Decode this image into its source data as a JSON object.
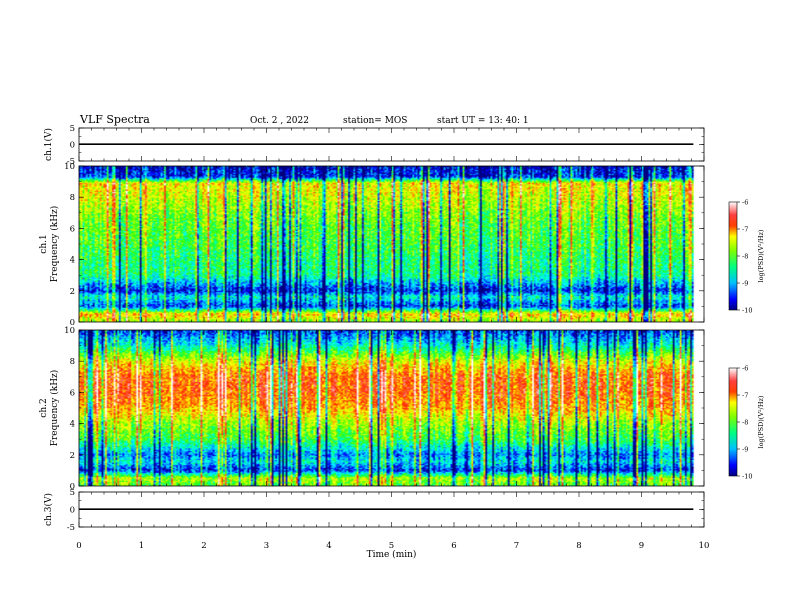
{
  "header": {
    "title": "VLF Spectra",
    "date": "Oct. 2 , 2022",
    "station": "station= MOS",
    "start": "start UT = 13: 40: 1"
  },
  "colors": {
    "colormap": [
      "#000080",
      "#0000ff",
      "#00a0ff",
      "#00ffff",
      "#00ff80",
      "#40ff00",
      "#c0ff00",
      "#ffff00",
      "#ff8000",
      "#ff2000",
      "#ff8080",
      "#ffffff"
    ],
    "trace": "#000000"
  },
  "chart_data": [
    {
      "type": "line",
      "panel": "ch1-waveform",
      "ylabel": "ch.1(V)",
      "ylim": [
        -5,
        5
      ],
      "yticks": [
        "5",
        "0",
        "-5"
      ],
      "xlim": [
        0,
        10
      ],
      "series": [
        {
          "x": [
            0,
            9.83
          ],
          "y": [
            0.1,
            0.1
          ]
        }
      ]
    },
    {
      "type": "heatmap",
      "panel": "ch1-spectrogram",
      "ylabel": "ch.1\nFrequency (kHz)",
      "ylim": [
        0,
        10
      ],
      "yticks": [
        "0",
        "2",
        "4",
        "6",
        "8",
        "10"
      ],
      "xlim": [
        0,
        10
      ],
      "x_data_max": 9.83,
      "colorbar": {
        "label": "log(PSD)(V²/Hz)",
        "range": [
          -10,
          -6
        ],
        "ticks": [
          "-6",
          "-7",
          "-8",
          "-9",
          "-10"
        ]
      },
      "band_profile": [
        {
          "f": 0.0,
          "level": -8.0
        },
        {
          "f": 0.5,
          "level": -7.3
        },
        {
          "f": 1.0,
          "level": -9.6
        },
        {
          "f": 1.6,
          "level": -8.8
        },
        {
          "f": 2.0,
          "level": -9.7
        },
        {
          "f": 3.0,
          "level": -8.6
        },
        {
          "f": 4.0,
          "level": -8.5
        },
        {
          "f": 5.0,
          "level": -8.3
        },
        {
          "f": 6.0,
          "level": -8.2
        },
        {
          "f": 7.0,
          "level": -8.0
        },
        {
          "f": 8.0,
          "level": -7.7
        },
        {
          "f": 8.9,
          "level": -7.5
        },
        {
          "f": 9.3,
          "level": -9.6
        },
        {
          "f": 10.0,
          "level": -9.8
        }
      ]
    },
    {
      "type": "heatmap",
      "panel": "ch2-spectrogram",
      "ylabel": "ch.2\nFrequency (kHz)",
      "ylim": [
        0,
        10
      ],
      "yticks": [
        "0",
        "2",
        "4",
        "6",
        "8",
        "10"
      ],
      "xlim": [
        0,
        10
      ],
      "x_data_max": 9.83,
      "colorbar": {
        "label": "log(PSD)(V²/Hz)",
        "range": [
          -10,
          -6
        ],
        "ticks": [
          "-6",
          "-7",
          "-8",
          "-9",
          "-10"
        ]
      },
      "band_profile": [
        {
          "f": 0.0,
          "level": -8.2
        },
        {
          "f": 0.5,
          "level": -7.8
        },
        {
          "f": 1.0,
          "level": -9.6
        },
        {
          "f": 1.6,
          "level": -8.9
        },
        {
          "f": 2.0,
          "level": -9.3
        },
        {
          "f": 3.0,
          "level": -8.3
        },
        {
          "f": 4.0,
          "level": -7.9
        },
        {
          "f": 5.0,
          "level": -7.2
        },
        {
          "f": 6.0,
          "level": -6.9
        },
        {
          "f": 7.0,
          "level": -6.9
        },
        {
          "f": 8.0,
          "level": -7.6
        },
        {
          "f": 9.0,
          "level": -8.8
        },
        {
          "f": 10.0,
          "level": -9.6
        }
      ]
    },
    {
      "type": "line",
      "panel": "ch3-waveform",
      "ylabel": "ch.3(V)",
      "ylim": [
        -5,
        5
      ],
      "yticks": [
        "5",
        "0",
        "-5"
      ],
      "xlim": [
        0,
        10
      ],
      "xlabel": "Time (min)",
      "xticks": [
        "0",
        "1",
        "2",
        "3",
        "4",
        "5",
        "6",
        "7",
        "8",
        "9",
        "10"
      ],
      "series": [
        {
          "x": [
            0,
            9.83
          ],
          "y": [
            0.1,
            0.1
          ]
        }
      ]
    }
  ]
}
